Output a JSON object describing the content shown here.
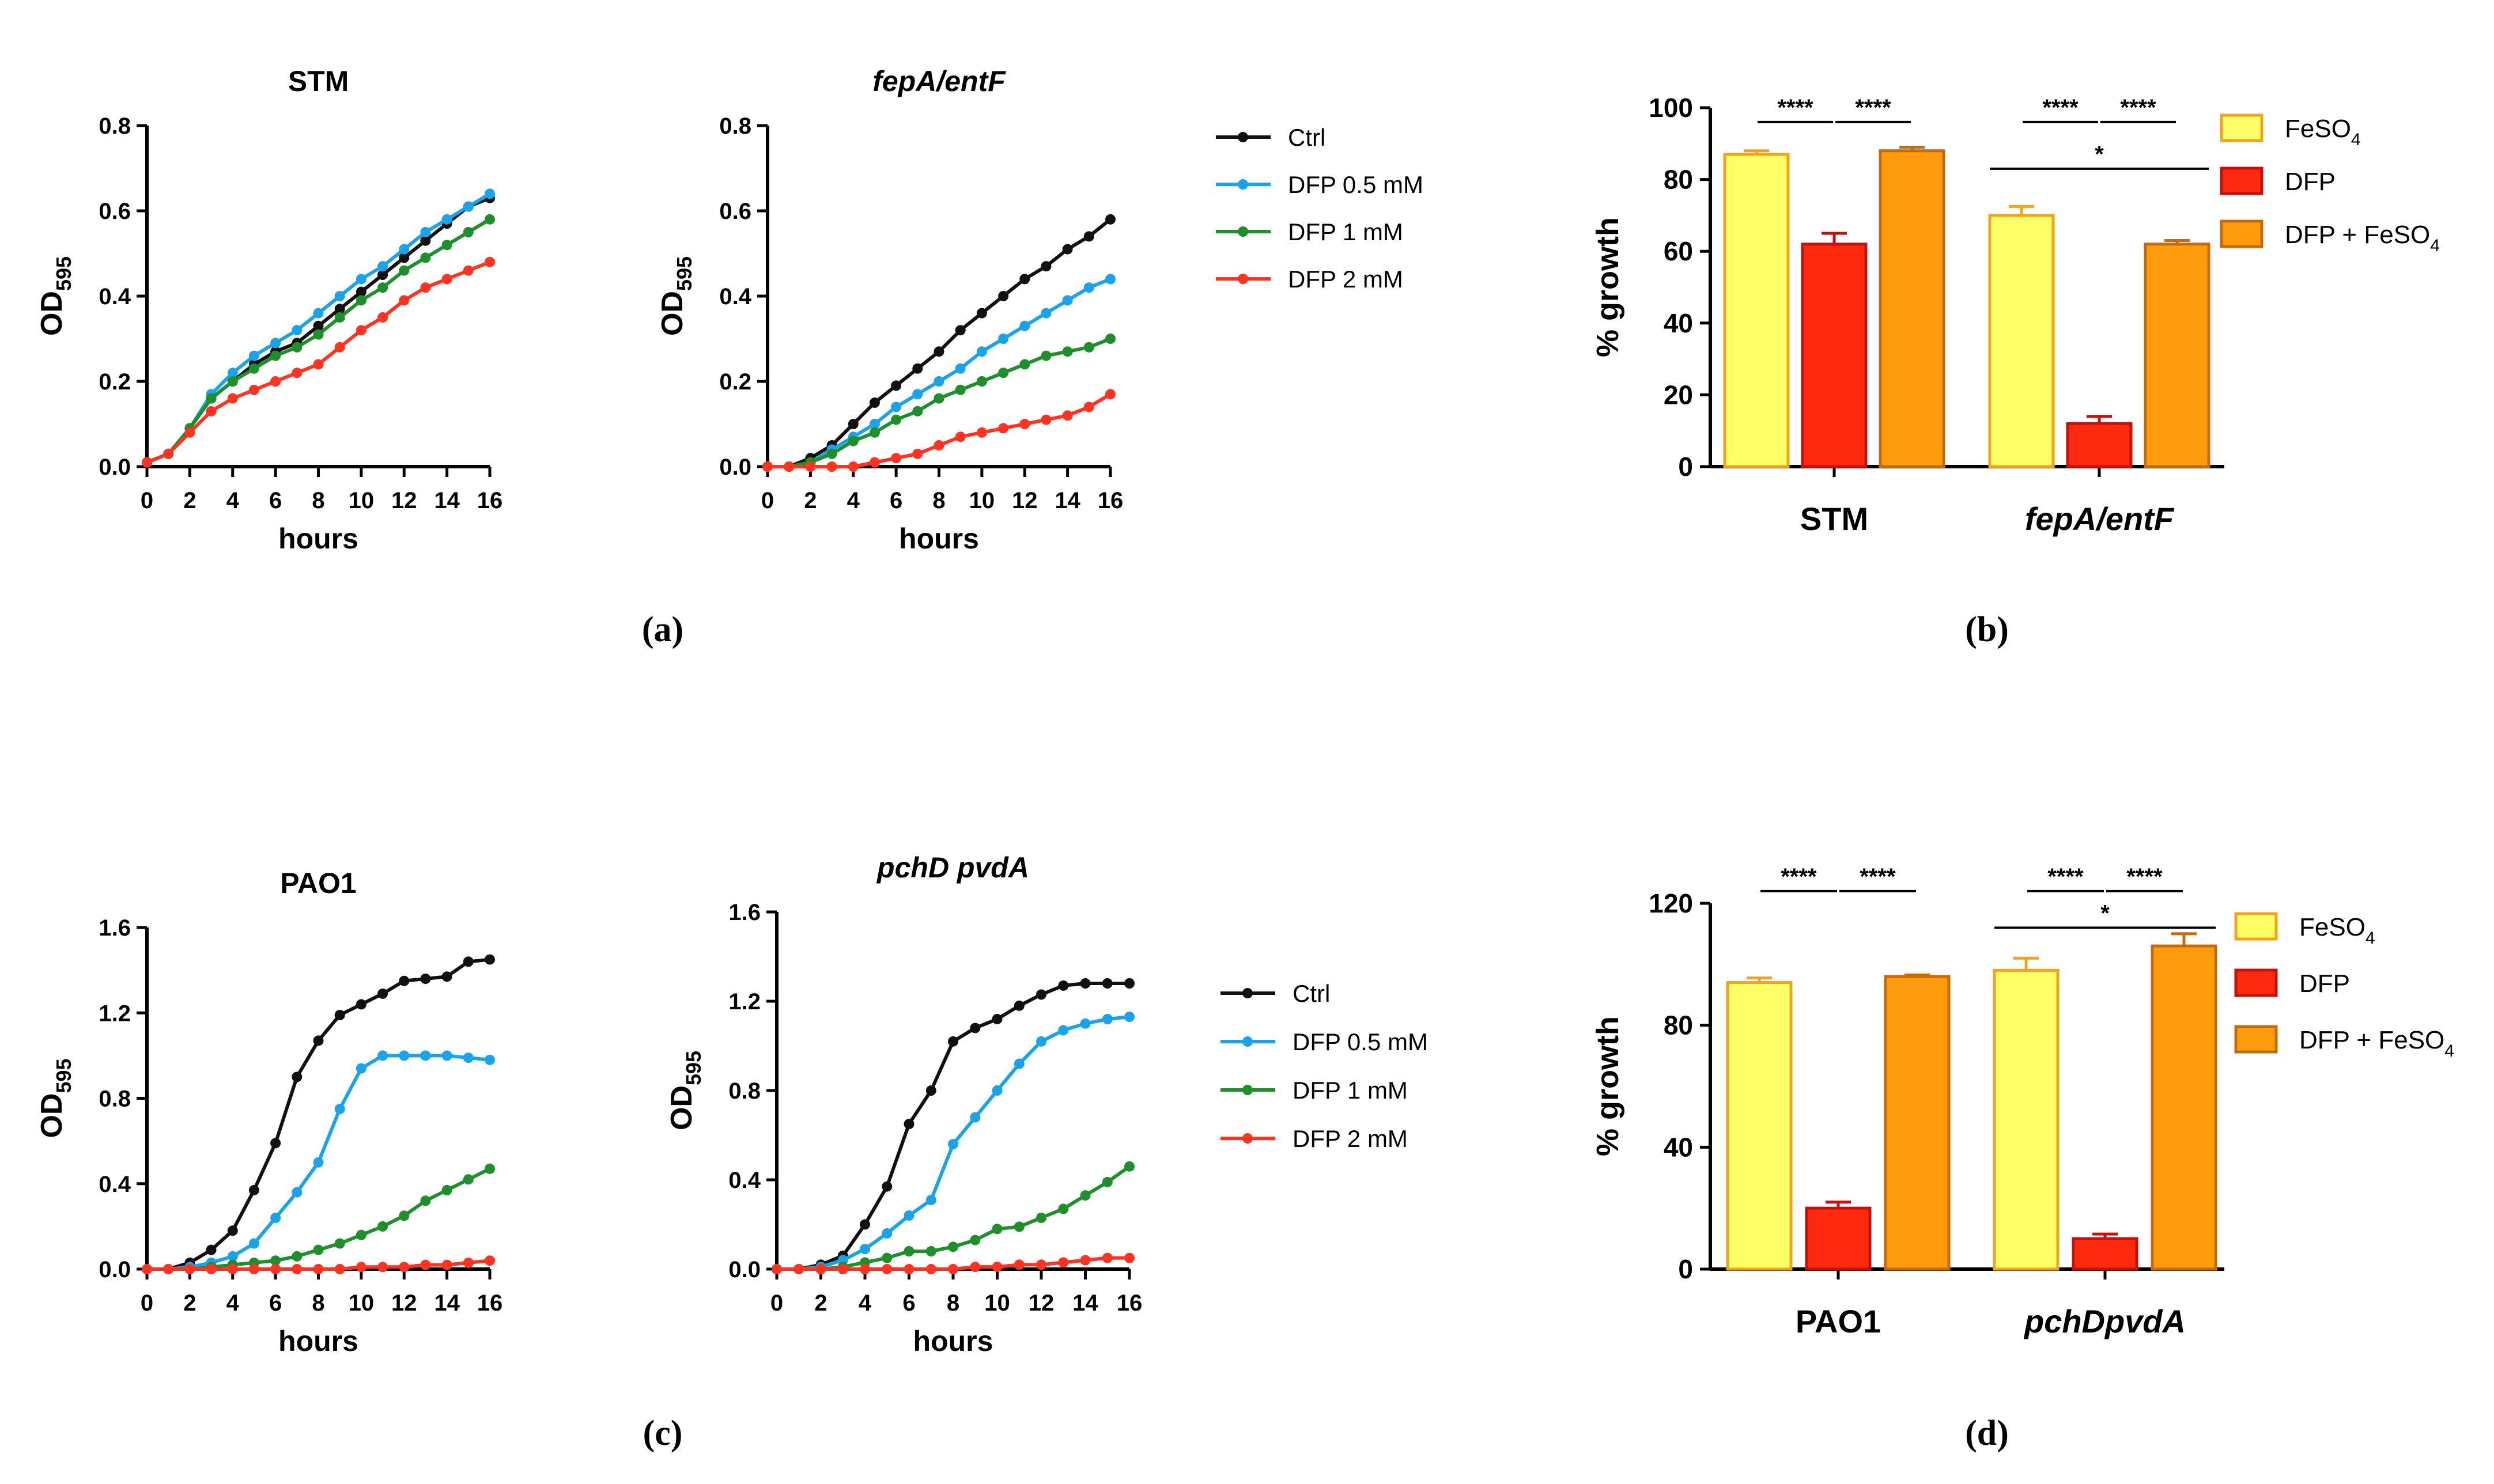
{
  "panel_labels": [
    "(a)",
    "(b)",
    "(c)",
    "(d)"
  ],
  "colors": {
    "ctrl": "#111111",
    "dfp05": "#1aa3e8",
    "dfp1": "#1e8f2a",
    "dfp2": "#ff3322",
    "feso4": "#ffff66",
    "feso4_edge": "#f2a31c",
    "dfp": "#ff2a0e",
    "dfp_edge": "#c2120b",
    "dfp_feso4": "#ff9c0e",
    "dfp_feso4_edge": "#c96a08",
    "error": "#9a9a9a"
  },
  "legend_lines": {
    "a": [
      "Ctrl",
      "DFP 0.5 mM",
      "DFP 1 mM",
      "DFP 2 mM"
    ],
    "c": [
      "Ctrl",
      "DFP 0.5 mM",
      "DFP 1 mM",
      "DFP 2 mM"
    ]
  },
  "legend_bars": {
    "b": [
      {
        "text": "FeSO",
        "sub": "4"
      },
      {
        "text": "DFP",
        "sub": ""
      },
      {
        "text": "DFP + FeSO",
        "sub": "4"
      }
    ],
    "d": [
      {
        "text": "FeSO",
        "sub": "4"
      },
      {
        "text": "DFP",
        "sub": ""
      },
      {
        "text": "DFP + FeSO",
        "sub": "4"
      }
    ]
  },
  "chart_data": [
    {
      "id": "a1",
      "type": "line",
      "title": "STM",
      "title_italic": false,
      "xlabel": "hours",
      "ylabel": "OD",
      "ylabel_sub": "595",
      "xlim": [
        0,
        16
      ],
      "ylim": [
        0,
        0.8
      ],
      "xticks": [
        0,
        2,
        4,
        6,
        8,
        10,
        12,
        14,
        16
      ],
      "yticks": [
        0,
        0.2,
        0.4,
        0.6,
        0.8
      ],
      "ytick_labels": [
        "0.0",
        "0.2",
        "0.4",
        "0.6",
        "0.8"
      ],
      "x": [
        0,
        1,
        2,
        3,
        4,
        5,
        6,
        7,
        8,
        9,
        10,
        11,
        12,
        13,
        14,
        15,
        16
      ],
      "series": [
        {
          "name": "Ctrl",
          "color_key": "ctrl",
          "values": [
            0.01,
            0.03,
            0.09,
            0.16,
            0.2,
            0.24,
            0.27,
            0.29,
            0.33,
            0.37,
            0.41,
            0.45,
            0.49,
            0.53,
            0.57,
            0.61,
            0.63
          ]
        },
        {
          "name": "DFP 0.5 mM",
          "color_key": "dfp05",
          "values": [
            0.01,
            0.03,
            0.09,
            0.17,
            0.22,
            0.26,
            0.29,
            0.32,
            0.36,
            0.4,
            0.44,
            0.47,
            0.51,
            0.55,
            0.58,
            0.61,
            0.64
          ]
        },
        {
          "name": "DFP 1 mM",
          "color_key": "dfp1",
          "values": [
            0.01,
            0.03,
            0.09,
            0.16,
            0.2,
            0.23,
            0.26,
            0.28,
            0.31,
            0.35,
            0.39,
            0.42,
            0.46,
            0.49,
            0.52,
            0.55,
            0.58
          ]
        },
        {
          "name": "DFP 2 mM",
          "color_key": "dfp2",
          "values": [
            0.01,
            0.03,
            0.08,
            0.13,
            0.16,
            0.18,
            0.2,
            0.22,
            0.24,
            0.28,
            0.32,
            0.35,
            0.39,
            0.42,
            0.44,
            0.46,
            0.48
          ]
        }
      ]
    },
    {
      "id": "a2",
      "type": "line",
      "title": "fepA/entF",
      "title_italic": true,
      "xlabel": "hours",
      "ylabel": "OD",
      "ylabel_sub": "595",
      "xlim": [
        0,
        16
      ],
      "ylim": [
        0,
        0.8
      ],
      "xticks": [
        0,
        2,
        4,
        6,
        8,
        10,
        12,
        14,
        16
      ],
      "yticks": [
        0,
        0.2,
        0.4,
        0.6,
        0.8
      ],
      "ytick_labels": [
        "0.0",
        "0.2",
        "0.4",
        "0.6",
        "0.8"
      ],
      "x": [
        0,
        1,
        2,
        3,
        4,
        5,
        6,
        7,
        8,
        9,
        10,
        11,
        12,
        13,
        14,
        15,
        16
      ],
      "series": [
        {
          "name": "Ctrl",
          "color_key": "ctrl",
          "values": [
            0,
            0,
            0.02,
            0.05,
            0.1,
            0.15,
            0.19,
            0.23,
            0.27,
            0.32,
            0.36,
            0.4,
            0.44,
            0.47,
            0.51,
            0.54,
            0.58
          ]
        },
        {
          "name": "DFP 0.5 mM",
          "color_key": "dfp05",
          "values": [
            0,
            0,
            0.01,
            0.04,
            0.07,
            0.1,
            0.14,
            0.17,
            0.2,
            0.23,
            0.27,
            0.3,
            0.33,
            0.36,
            0.39,
            0.42,
            0.44
          ]
        },
        {
          "name": "DFP 1 mM",
          "color_key": "dfp1",
          "values": [
            0,
            0,
            0.01,
            0.03,
            0.06,
            0.08,
            0.11,
            0.13,
            0.16,
            0.18,
            0.2,
            0.22,
            0.24,
            0.26,
            0.27,
            0.28,
            0.3
          ]
        },
        {
          "name": "DFP 2 mM",
          "color_key": "dfp2",
          "values": [
            0,
            0,
            0,
            0,
            0,
            0.01,
            0.02,
            0.03,
            0.05,
            0.07,
            0.08,
            0.09,
            0.1,
            0.11,
            0.12,
            0.14,
            0.17
          ]
        }
      ]
    },
    {
      "id": "b",
      "type": "bar",
      "title": "",
      "xlabel": "",
      "ylabel": "% growth",
      "ylim": [
        0,
        100
      ],
      "yticks": [
        0,
        20,
        40,
        60,
        80,
        100
      ],
      "ytick_labels": [
        "0",
        "20",
        "40",
        "60",
        "80",
        "100"
      ],
      "categories": [
        "STM",
        "fepA/entF"
      ],
      "categories_italic": [
        false,
        true
      ],
      "series": [
        {
          "name": "FeSO4",
          "color_key": "feso4",
          "edge_key": "feso4_edge",
          "values": [
            87,
            70
          ],
          "errors": [
            1,
            2.5
          ]
        },
        {
          "name": "DFP",
          "color_key": "dfp",
          "edge_key": "dfp_edge",
          "values": [
            62,
            12
          ],
          "errors": [
            3,
            2
          ]
        },
        {
          "name": "DFP + FeSO4",
          "color_key": "dfp_feso4",
          "edge_key": "dfp_feso4_edge",
          "values": [
            88,
            62
          ],
          "errors": [
            1,
            1
          ]
        }
      ],
      "significance": [
        {
          "group": 0,
          "from": 0,
          "to": 1,
          "label": "****",
          "value": 96
        },
        {
          "group": 0,
          "from": 1,
          "to": 2,
          "label": "****",
          "value": 96
        },
        {
          "group": 1,
          "from": 0,
          "to": 1,
          "label": "****",
          "value": 96
        },
        {
          "group": 1,
          "from": 1,
          "to": 2,
          "label": "****",
          "value": 96
        },
        {
          "group": 1,
          "from": 0,
          "to": 2,
          "label": "*",
          "value": 83
        }
      ]
    },
    {
      "id": "c1",
      "type": "line",
      "title": "PAO1",
      "title_italic": false,
      "xlabel": "hours",
      "ylabel": "OD",
      "ylabel_sub": "595",
      "xlim": [
        0,
        16
      ],
      "ylim": [
        0,
        1.6
      ],
      "xticks": [
        0,
        2,
        4,
        6,
        8,
        10,
        12,
        14,
        16
      ],
      "yticks": [
        0,
        0.4,
        0.8,
        1.2,
        1.6
      ],
      "ytick_labels": [
        "0.0",
        "0.4",
        "0.8",
        "1.2",
        "1.6"
      ],
      "x": [
        0,
        1,
        2,
        3,
        4,
        5,
        6,
        7,
        8,
        9,
        10,
        11,
        12,
        13,
        14,
        15,
        16
      ],
      "series": [
        {
          "name": "Ctrl",
          "color_key": "ctrl",
          "values": [
            0,
            0,
            0.03,
            0.09,
            0.18,
            0.37,
            0.59,
            0.9,
            1.07,
            1.19,
            1.24,
            1.29,
            1.35,
            1.36,
            1.37,
            1.44,
            1.45
          ]
        },
        {
          "name": "DFP 0.5 mM",
          "color_key": "dfp05",
          "values": [
            0,
            0,
            0.01,
            0.03,
            0.06,
            0.12,
            0.24,
            0.36,
            0.5,
            0.75,
            0.94,
            1.0,
            1.0,
            1.0,
            1.0,
            0.99,
            0.98
          ]
        },
        {
          "name": "DFP 1 mM",
          "color_key": "dfp1",
          "values": [
            0,
            0,
            0,
            0.01,
            0.02,
            0.03,
            0.04,
            0.06,
            0.09,
            0.12,
            0.16,
            0.2,
            0.25,
            0.32,
            0.37,
            0.42,
            0.47
          ]
        },
        {
          "name": "DFP 2 mM",
          "color_key": "dfp2",
          "values": [
            0,
            0,
            0,
            0,
            0,
            0,
            0,
            0,
            0,
            0,
            0.01,
            0.01,
            0.01,
            0.02,
            0.02,
            0.03,
            0.04
          ]
        }
      ]
    },
    {
      "id": "c2",
      "type": "line",
      "title": "pchD pvdA",
      "title_italic": true,
      "xlabel": "hours",
      "ylabel": "OD",
      "ylabel_sub": "595",
      "xlim": [
        0,
        16
      ],
      "ylim": [
        0,
        1.6
      ],
      "xticks": [
        0,
        2,
        4,
        6,
        8,
        10,
        12,
        14,
        16
      ],
      "yticks": [
        0,
        0.4,
        0.8,
        1.2,
        1.6
      ],
      "ytick_labels": [
        "0.0",
        "0.4",
        "0.8",
        "1.2",
        "1.6"
      ],
      "x": [
        0,
        1,
        2,
        3,
        4,
        5,
        6,
        7,
        8,
        9,
        10,
        11,
        12,
        13,
        14,
        15,
        16
      ],
      "series": [
        {
          "name": "Ctrl",
          "color_key": "ctrl",
          "values": [
            0,
            0,
            0.02,
            0.06,
            0.2,
            0.37,
            0.65,
            0.8,
            1.02,
            1.08,
            1.12,
            1.18,
            1.23,
            1.27,
            1.28,
            1.28,
            1.28
          ]
        },
        {
          "name": "DFP 0.5 mM",
          "color_key": "dfp05",
          "values": [
            0,
            0,
            0.01,
            0.04,
            0.09,
            0.16,
            0.24,
            0.31,
            0.56,
            0.68,
            0.8,
            0.92,
            1.02,
            1.07,
            1.1,
            1.12,
            1.13
          ]
        },
        {
          "name": "DFP 1 mM",
          "color_key": "dfp1",
          "values": [
            0,
            0,
            0,
            0.01,
            0.03,
            0.05,
            0.08,
            0.08,
            0.1,
            0.13,
            0.18,
            0.19,
            0.23,
            0.27,
            0.33,
            0.39,
            0.46
          ]
        },
        {
          "name": "DFP 2 mM",
          "color_key": "dfp2",
          "values": [
            0,
            0,
            0,
            0,
            0,
            0,
            0,
            0,
            0,
            0.01,
            0.01,
            0.02,
            0.02,
            0.03,
            0.04,
            0.05,
            0.05
          ]
        }
      ]
    },
    {
      "id": "d",
      "type": "bar",
      "title": "",
      "xlabel": "",
      "ylabel": "% growth",
      "ylim": [
        0,
        120
      ],
      "yticks": [
        0,
        40,
        80,
        120
      ],
      "ytick_labels": [
        "0",
        "40",
        "80",
        "120"
      ],
      "categories": [
        "PAO1",
        "pchDpvdA"
      ],
      "categories_italic": [
        false,
        true
      ],
      "series": [
        {
          "name": "FeSO4",
          "color_key": "feso4",
          "edge_key": "feso4_edge",
          "values": [
            94,
            98
          ],
          "errors": [
            1.5,
            4
          ]
        },
        {
          "name": "DFP",
          "color_key": "dfp",
          "edge_key": "dfp_edge",
          "values": [
            20,
            10
          ],
          "errors": [
            2,
            1.5
          ]
        },
        {
          "name": "DFP + FeSO4",
          "color_key": "dfp_feso4",
          "edge_key": "dfp_feso4_edge",
          "values": [
            96,
            106
          ],
          "errors": [
            0.5,
            4
          ]
        }
      ],
      "significance": [
        {
          "group": 0,
          "from": 0,
          "to": 1,
          "label": "****",
          "value": 124
        },
        {
          "group": 0,
          "from": 1,
          "to": 2,
          "label": "****",
          "value": 124
        },
        {
          "group": 1,
          "from": 0,
          "to": 1,
          "label": "****",
          "value": 124
        },
        {
          "group": 1,
          "from": 1,
          "to": 2,
          "label": "****",
          "value": 124
        },
        {
          "group": 1,
          "from": 0,
          "to": 2,
          "label": "*",
          "value": 112
        }
      ]
    }
  ]
}
